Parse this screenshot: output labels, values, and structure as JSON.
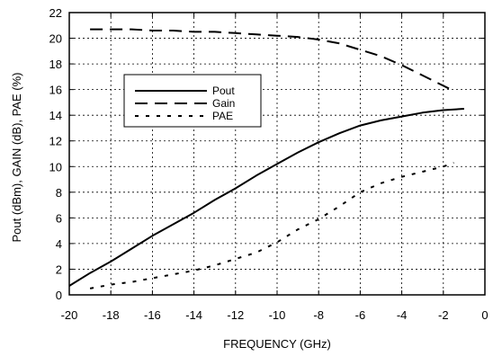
{
  "chart_data": {
    "type": "line",
    "title": "",
    "xlabel": "FREQUENCY (GHz)",
    "ylabel": "Pout (dBm), GAIN (dB), PAE (%)",
    "xlim": [
      -20,
      0
    ],
    "ylim": [
      0,
      22
    ],
    "x_ticks": [
      -20,
      -18,
      -16,
      -14,
      -12,
      -10,
      -8,
      -6,
      -4,
      -2,
      0
    ],
    "y_ticks": [
      0,
      2,
      4,
      6,
      8,
      10,
      12,
      14,
      16,
      18,
      20,
      22
    ],
    "x_tick_labels": [
      "-20",
      "-18",
      "-16",
      "-14",
      "-12",
      "-10",
      "-8",
      "-6",
      "-4",
      "-2",
      "0"
    ],
    "y_tick_labels": [
      "0",
      "2",
      "4",
      "6",
      "8",
      "10",
      "12",
      "14",
      "16",
      "18",
      "20",
      "22"
    ],
    "grid": true,
    "legend_position": "upper-left",
    "series": [
      {
        "name": "Pout",
        "style": "solid",
        "color": "#000000",
        "x": [
          -20,
          -19,
          -18,
          -17,
          -16,
          -15,
          -14,
          -13,
          -12,
          -11,
          -10,
          -9,
          -8,
          -7,
          -6,
          -5,
          -4,
          -3,
          -2,
          -1
        ],
        "y": [
          0.7,
          1.7,
          2.6,
          3.6,
          4.6,
          5.5,
          6.4,
          7.4,
          8.3,
          9.3,
          10.2,
          11.1,
          11.9,
          12.6,
          13.2,
          13.6,
          13.9,
          14.2,
          14.4,
          14.5
        ]
      },
      {
        "name": "Gain",
        "style": "dashed",
        "color": "#000000",
        "x": [
          -19,
          -18,
          -17,
          -16,
          -15,
          -14,
          -13,
          -12,
          -11,
          -10,
          -9,
          -8,
          -7,
          -6,
          -5,
          -4,
          -3,
          -2,
          -1.5
        ],
        "y": [
          20.7,
          20.7,
          20.7,
          20.6,
          20.6,
          20.5,
          20.5,
          20.4,
          20.3,
          20.2,
          20.1,
          19.9,
          19.6,
          19.1,
          18.6,
          17.9,
          17.1,
          16.3,
          15.9
        ]
      },
      {
        "name": "PAE",
        "style": "dotted",
        "color": "#000000",
        "x": [
          -19,
          -18,
          -17,
          -16,
          -15,
          -14,
          -13,
          -12,
          -11,
          -10,
          -9,
          -8,
          -7,
          -6,
          -5,
          -4,
          -3,
          -2,
          -1.5
        ],
        "y": [
          0.5,
          0.8,
          1.0,
          1.3,
          1.6,
          1.9,
          2.3,
          2.8,
          3.3,
          4.1,
          5.1,
          5.9,
          6.9,
          8.0,
          8.7,
          9.2,
          9.6,
          10.0,
          10.3
        ]
      }
    ]
  }
}
